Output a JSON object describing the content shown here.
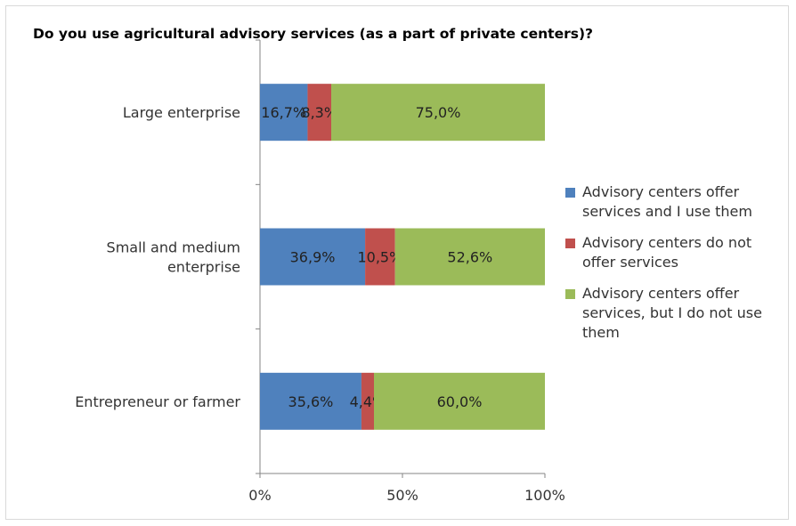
{
  "chart_data": {
    "type": "bar",
    "orientation": "horizontal",
    "stacked": "percent",
    "title": "Do you use agricultural advisory services (as a part of private centers)?",
    "categories": [
      [
        "Large enterprise"
      ],
      [
        "Small and medium",
        "enterprise"
      ],
      [
        "Entrepreneur or farmer"
      ]
    ],
    "series": [
      {
        "name": "Advisory centers offer services and I use them",
        "legend_lines": [
          "Advisory centers offer",
          "services and I use them"
        ],
        "color": "#4f81bd",
        "values": [
          16.7,
          36.9,
          35.6
        ],
        "labels": [
          "16,7%",
          "36,9%",
          "35,6%"
        ]
      },
      {
        "name": "Advisory centers  do not offer services",
        "legend_lines": [
          "Advisory centers  do not",
          "offer services"
        ],
        "color": "#c0504d",
        "values": [
          8.3,
          10.5,
          4.4
        ],
        "labels": [
          "8,3%",
          "10,5%",
          "4,4%"
        ]
      },
      {
        "name": "Advisory centers offer services, but I do not use them",
        "legend_lines": [
          "Advisory centers offer",
          "services, but I do not use",
          "them"
        ],
        "color": "#9bbb59",
        "values": [
          75.0,
          52.6,
          60.0
        ],
        "labels": [
          "75,0%",
          "52,6%",
          "60,0%"
        ]
      }
    ],
    "x_ticks": [
      "0%",
      "50%",
      "100%"
    ],
    "xlim": [
      0,
      100
    ],
    "grid": false,
    "legend_position": "right"
  }
}
